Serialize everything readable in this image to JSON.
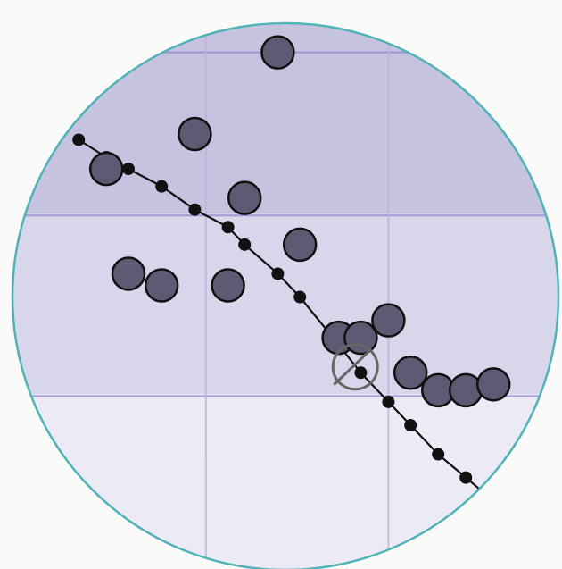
{
  "colors": {
    "background": "#fafaf8",
    "band_top": "#c6c3e0",
    "band_mid": "#d8d6ea",
    "band_bottom": "#ecebf5",
    "gridline": "#b9b4da",
    "band_border": "#8e86cc",
    "lens_border": "#4fb3b8",
    "point_fill": "#5d5a74",
    "point_stroke": "#111111",
    "line_color": "#111111",
    "target_marker": "#666666"
  },
  "chart_data": {
    "type": "scatter",
    "title": "",
    "xlabel": "",
    "ylabel": "",
    "xlim": [
      0,
      10
    ],
    "ylim": [
      0,
      10
    ],
    "grid": true,
    "bands": [
      {
        "name": "top",
        "y_from": 6.3,
        "y_to": 10
      },
      {
        "name": "middle",
        "y_from": 3.2,
        "y_to": 6.3
      },
      {
        "name": "bottom",
        "y_from": 0,
        "y_to": 3.2
      }
    ],
    "reference_lines": [
      {
        "orientation": "horizontal",
        "y": 9.1
      },
      {
        "orientation": "horizontal",
        "y": 6.3
      },
      {
        "orientation": "horizontal",
        "y": 3.2
      },
      {
        "orientation": "vertical",
        "x": 3.4
      },
      {
        "orientation": "vertical",
        "x": 6.7
      }
    ],
    "points": [
      {
        "x": 4.7,
        "y": 9.1
      },
      {
        "x": 3.2,
        "y": 7.7
      },
      {
        "x": 1.6,
        "y": 7.1
      },
      {
        "x": 4.1,
        "y": 6.6
      },
      {
        "x": 5.1,
        "y": 5.8
      },
      {
        "x": 2.0,
        "y": 5.3
      },
      {
        "x": 2.6,
        "y": 5.1
      },
      {
        "x": 3.8,
        "y": 5.1
      },
      {
        "x": 5.8,
        "y": 4.2
      },
      {
        "x": 6.2,
        "y": 4.2
      },
      {
        "x": 6.7,
        "y": 4.5
      },
      {
        "x": 7.1,
        "y": 3.6
      },
      {
        "x": 7.6,
        "y": 3.3
      },
      {
        "x": 8.1,
        "y": 3.3
      },
      {
        "x": 8.6,
        "y": 3.4
      }
    ],
    "trend_line": {
      "x": [
        1.1,
        1.6,
        2.0,
        2.6,
        3.2,
        3.8,
        4.1,
        4.7,
        5.1,
        5.7,
        6.2,
        6.7,
        7.1,
        7.6,
        8.1,
        8.6
      ],
      "y": [
        7.6,
        7.3,
        7.1,
        6.8,
        6.4,
        6.1,
        5.8,
        5.3,
        4.9,
        4.2,
        3.6,
        3.1,
        2.7,
        2.2,
        1.8,
        1.4
      ]
    },
    "target_marker": {
      "x": 6.1,
      "y": 3.7
    }
  }
}
